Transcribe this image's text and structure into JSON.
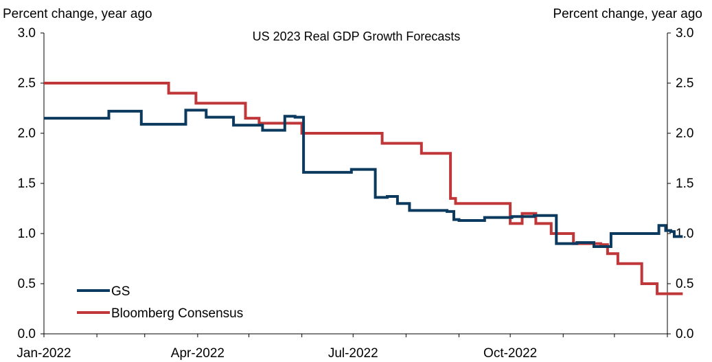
{
  "chart_data": {
    "type": "line",
    "title": "US 2023 Real GDP Growth Forecasts",
    "ylabel_left": "Percent change, year ago",
    "ylabel_right": "Percent change, year ago",
    "xlabel": "",
    "x_ticks": [
      "Jan-2022",
      "Apr-2022",
      "Jul-2022",
      "Oct-2022"
    ],
    "y_ticks": [
      "0.0",
      "0.5",
      "1.0",
      "1.5",
      "2.0",
      "2.5",
      "3.0"
    ],
    "ylim": [
      0,
      3
    ],
    "xlim": [
      "2022-01-01",
      "2023-01-01"
    ],
    "grid": false,
    "legend_position": "bottom-left",
    "series": [
      {
        "name": "GS",
        "color": "#0b3a5e",
        "step": true,
        "points": [
          [
            "2022-01-01",
            2.15
          ],
          [
            "2022-02-08",
            2.22
          ],
          [
            "2022-02-27",
            2.09
          ],
          [
            "2022-03-25",
            2.23
          ],
          [
            "2022-04-06",
            2.16
          ],
          [
            "2022-04-22",
            2.08
          ],
          [
            "2022-05-09",
            2.03
          ],
          [
            "2022-05-22",
            2.17
          ],
          [
            "2022-05-28",
            2.16
          ],
          [
            "2022-06-02",
            1.61
          ],
          [
            "2022-06-30",
            1.64
          ],
          [
            "2022-07-14",
            1.36
          ],
          [
            "2022-07-21",
            1.37
          ],
          [
            "2022-07-27",
            1.3
          ],
          [
            "2022-08-03",
            1.23
          ],
          [
            "2022-08-25",
            1.22
          ],
          [
            "2022-08-29",
            1.14
          ],
          [
            "2022-09-01",
            1.13
          ],
          [
            "2022-09-16",
            1.16
          ],
          [
            "2022-10-02",
            1.17
          ],
          [
            "2022-10-15",
            1.18
          ],
          [
            "2022-10-28",
            0.9
          ],
          [
            "2022-11-09",
            0.91
          ],
          [
            "2022-11-19",
            0.87
          ],
          [
            "2022-11-29",
            1.0
          ],
          [
            "2022-12-27",
            1.08
          ],
          [
            "2022-12-31",
            1.03
          ],
          [
            "2023-01-03",
            1.02
          ],
          [
            "2023-01-05",
            0.97
          ],
          [
            "2023-01-10",
            0.97
          ]
        ]
      },
      {
        "name": "Bloomberg Consensus",
        "color": "#c0373a",
        "step": true,
        "points": [
          [
            "2022-01-01",
            2.5
          ],
          [
            "2022-03-15",
            2.4
          ],
          [
            "2022-03-31",
            2.3
          ],
          [
            "2022-04-29",
            2.15
          ],
          [
            "2022-05-07",
            2.1
          ],
          [
            "2022-06-01",
            2.0
          ],
          [
            "2022-07-18",
            1.9
          ],
          [
            "2022-08-10",
            1.8
          ],
          [
            "2022-08-27",
            1.35
          ],
          [
            "2022-08-30",
            1.3
          ],
          [
            "2022-10-01",
            1.1
          ],
          [
            "2022-10-08",
            1.2
          ],
          [
            "2022-10-16",
            1.1
          ],
          [
            "2022-10-25",
            1.0
          ],
          [
            "2022-11-07",
            0.9
          ],
          [
            "2022-11-23",
            0.89
          ],
          [
            "2022-11-27",
            0.8
          ],
          [
            "2022-12-03",
            0.7
          ],
          [
            "2022-12-17",
            0.5
          ],
          [
            "2022-12-26",
            0.4
          ],
          [
            "2023-01-10",
            0.4
          ]
        ]
      }
    ]
  }
}
